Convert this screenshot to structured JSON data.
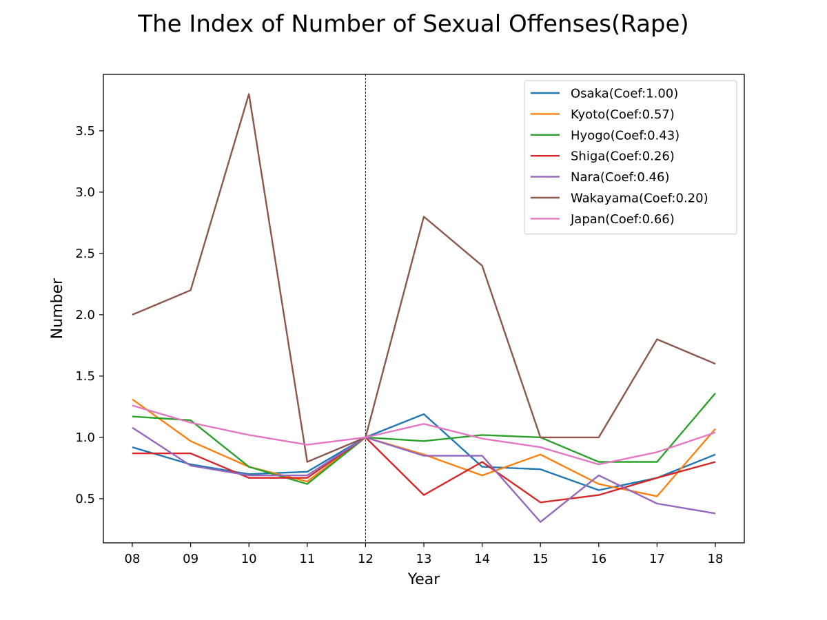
{
  "chart_data": {
    "type": "line",
    "title": "The Index of Number of Sexual Offenses(Rape)",
    "xlabel": "Year",
    "ylabel": "Number",
    "x": [
      "08",
      "09",
      "10",
      "11",
      "12",
      "13",
      "14",
      "15",
      "16",
      "17",
      "18"
    ],
    "ylim": [
      0.14,
      3.96
    ],
    "yticks": [
      0.5,
      1.0,
      1.5,
      2.0,
      2.5,
      3.0,
      3.5
    ],
    "ytick_labels": [
      "0.5",
      "1.0",
      "1.5",
      "2.0",
      "2.5",
      "3.0",
      "3.5"
    ],
    "reference_line_x": "12",
    "grid": false,
    "legend_position": "top-right",
    "series": [
      {
        "name": "Osaka(Coef:1.00)",
        "color": "#1f77b4",
        "values": [
          0.92,
          0.78,
          0.7,
          0.72,
          1.0,
          1.19,
          0.76,
          0.74,
          0.57,
          0.67,
          0.86
        ]
      },
      {
        "name": "Kyoto(Coef:0.57)",
        "color": "#ff7f0e",
        "values": [
          1.31,
          0.97,
          0.76,
          0.64,
          1.0,
          0.86,
          0.69,
          0.86,
          0.62,
          0.52,
          1.07
        ]
      },
      {
        "name": "Hyogo(Coef:0.43)",
        "color": "#2ca02c",
        "values": [
          1.17,
          1.14,
          0.76,
          0.62,
          1.0,
          0.97,
          1.02,
          1.0,
          0.8,
          0.8,
          1.36
        ]
      },
      {
        "name": "Shiga(Coef:0.26)",
        "color": "#d62728",
        "values": [
          0.87,
          0.87,
          0.67,
          0.67,
          1.0,
          0.53,
          0.8,
          0.47,
          0.53,
          0.67,
          0.8
        ]
      },
      {
        "name": "Nara(Coef:0.46)",
        "color": "#9467bd",
        "values": [
          1.08,
          0.77,
          0.69,
          0.69,
          1.0,
          0.85,
          0.85,
          0.31,
          0.69,
          0.46,
          0.38
        ]
      },
      {
        "name": "Wakayama(Coef:0.20)",
        "color": "#8c564b",
        "values": [
          2.0,
          2.2,
          3.8,
          0.8,
          1.0,
          2.8,
          2.4,
          1.0,
          1.0,
          1.8,
          1.6
        ]
      },
      {
        "name": "Japan(Coef:0.66)",
        "color": "#e377c2",
        "values": [
          1.26,
          1.12,
          1.02,
          0.94,
          1.0,
          1.11,
          0.99,
          0.92,
          0.78,
          0.88,
          1.04
        ]
      }
    ]
  }
}
